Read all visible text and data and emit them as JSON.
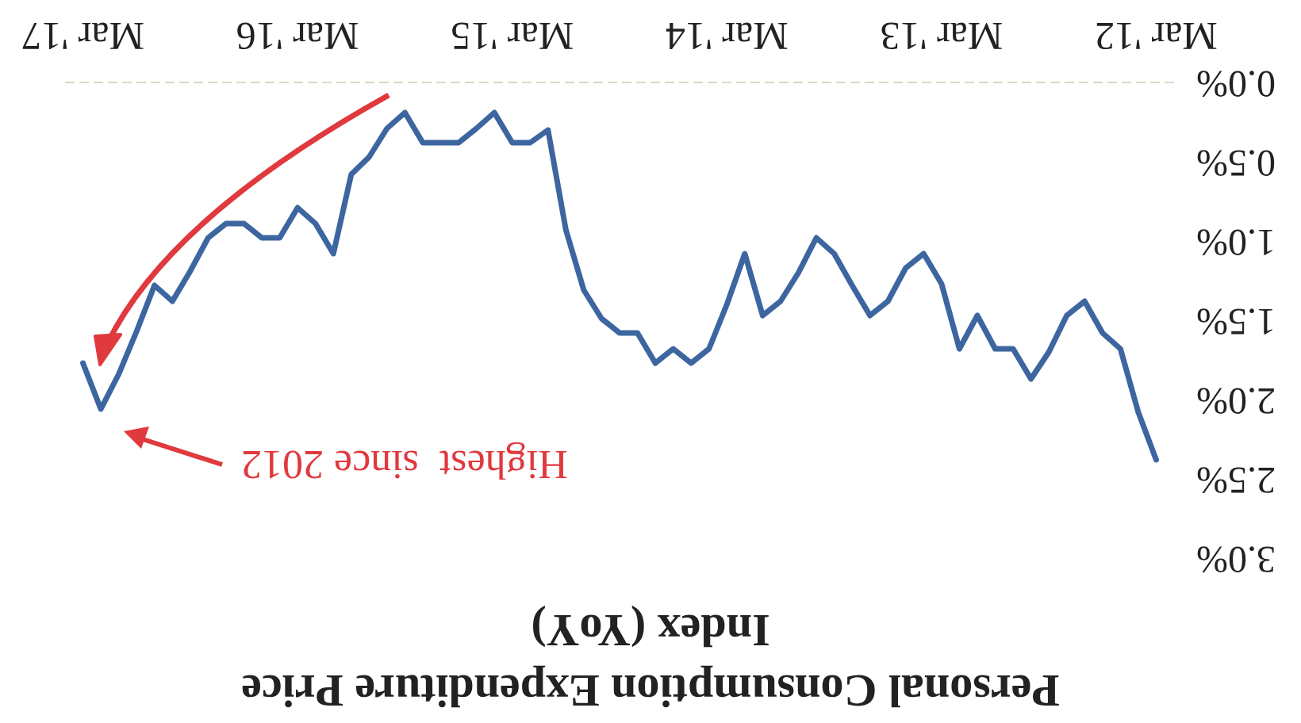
{
  "chart_data": {
    "type": "line",
    "title": "Personal Consumption Expenditure Price Index (YoY)",
    "x": [
      "2012-03",
      "2012-04",
      "2012-05",
      "2012-06",
      "2012-07",
      "2012-08",
      "2012-09",
      "2012-10",
      "2012-11",
      "2012-12",
      "2013-01",
      "2013-02",
      "2013-03",
      "2013-04",
      "2013-05",
      "2013-06",
      "2013-07",
      "2013-08",
      "2013-09",
      "2013-10",
      "2013-11",
      "2013-12",
      "2014-01",
      "2014-02",
      "2014-03",
      "2014-04",
      "2014-05",
      "2014-06",
      "2014-07",
      "2014-08",
      "2014-09",
      "2014-10",
      "2014-11",
      "2014-12",
      "2015-01",
      "2015-02",
      "2015-03",
      "2015-04",
      "2015-05",
      "2015-06",
      "2015-07",
      "2015-08",
      "2015-09",
      "2015-10",
      "2015-11",
      "2015-12",
      "2016-01",
      "2016-02",
      "2016-03",
      "2016-04",
      "2016-05",
      "2016-06",
      "2016-07",
      "2016-08",
      "2016-09",
      "2016-10",
      "2016-11",
      "2016-12",
      "2017-01",
      "2017-02",
      "2017-03"
    ],
    "values": [
      2.38,
      2.08,
      1.68,
      1.58,
      1.38,
      1.47,
      1.7,
      1.87,
      1.68,
      1.68,
      1.47,
      1.68,
      1.27,
      1.08,
      1.17,
      1.38,
      1.47,
      1.28,
      1.08,
      0.98,
      1.2,
      1.38,
      1.47,
      1.08,
      1.4,
      1.68,
      1.77,
      1.68,
      1.77,
      1.58,
      1.58,
      1.49,
      1.31,
      0.93,
      0.3,
      0.38,
      0.38,
      0.19,
      0.29,
      0.38,
      0.38,
      0.38,
      0.19,
      0.29,
      0.47,
      0.58,
      1.08,
      0.89,
      0.79,
      0.98,
      0.98,
      0.89,
      0.89,
      0.98,
      1.19,
      1.38,
      1.28,
      1.57,
      1.84,
      2.06,
      1.77
    ],
    "color": "#3d66a0",
    "xlim": [
      "2017-04",
      "2012-02"
    ],
    "xticks": [
      {
        "value": "2012-03",
        "label": "Mar '12"
      },
      {
        "value": "2013-03",
        "label": "Mar '13"
      },
      {
        "value": "2014-03",
        "label": "Mar '14"
      },
      {
        "value": "2015-03",
        "label": "Mar '15"
      },
      {
        "value": "2016-03",
        "label": "Mar '16"
      },
      {
        "value": "2017-03",
        "label": "Mar '17"
      }
    ],
    "ylim": [
      3,
      0
    ],
    "yticks": [
      {
        "value": 0,
        "label": "0.0%"
      },
      {
        "value": 0.5,
        "label": "0.5%"
      },
      {
        "value": 1,
        "label": "1.0%"
      },
      {
        "value": 1.5,
        "label": "1.5%"
      },
      {
        "value": 2,
        "label": "2.0%"
      },
      {
        "value": 2.5,
        "label": "2.5%"
      },
      {
        "value": 3,
        "label": "3.0%"
      }
    ],
    "annotations": [
      "Highest  since 2012"
    ]
  }
}
